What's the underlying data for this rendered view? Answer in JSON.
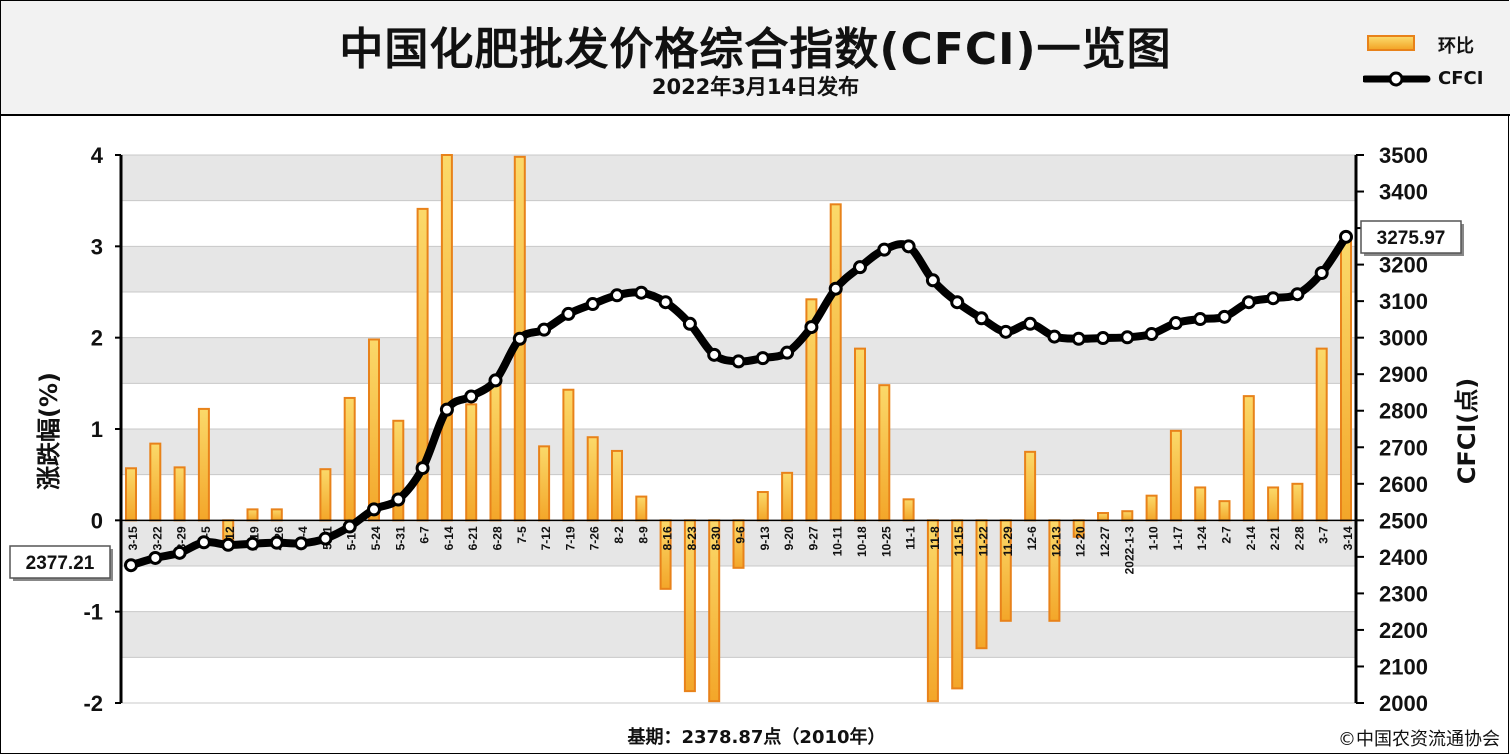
{
  "header": {
    "title": "中国化肥批发价格综合指数(CFCI)一览图",
    "subtitle": "2022年3月14日发布"
  },
  "legend": {
    "bar_label": "环比",
    "line_label": "CFCI"
  },
  "footer": {
    "base_note": "基期：2378.87点（2010年）",
    "copyright": "©中国农资流通协会"
  },
  "colors": {
    "bar_edge": "#e8821a",
    "bar_fill_top": "#fbd96a",
    "bar_fill_bottom": "#f3a629",
    "line": "#000000",
    "plot_band": "#e6e6e6"
  },
  "chart_data": {
    "type": "bar+line",
    "left_axis": {
      "label": "涨跌幅(%)",
      "ylim": [
        -2,
        4
      ],
      "ticks": [
        "-2",
        "-1",
        "0",
        "1",
        "2",
        "3",
        "4"
      ]
    },
    "right_axis": {
      "label": "CFCI(点)",
      "ylim": [
        2000,
        3500
      ],
      "ticks": [
        "2000",
        "2100",
        "2200",
        "2300",
        "2400",
        "2500",
        "2600",
        "2700",
        "2800",
        "2900",
        "3000",
        "3100",
        "3200",
        "3300",
        "3400",
        "3500"
      ]
    },
    "categories": [
      "3-15",
      "3-22",
      "3-29",
      "4-5",
      "4-12",
      "4-19",
      "4-26",
      "5-4",
      "5-11",
      "5-17",
      "5-24",
      "5-31",
      "6-7",
      "6-14",
      "6-21",
      "6-28",
      "7-5",
      "7-12",
      "7-19",
      "7-26",
      "8-2",
      "8-9",
      "8-16",
      "8-23",
      "8-30",
      "9-6",
      "9-13",
      "9-20",
      "9-27",
      "10-11",
      "10-18",
      "10-25",
      "11-1",
      "11-8",
      "11-15",
      "11-22",
      "11-29",
      "12-6",
      "12-13",
      "12-20",
      "12-27",
      "2022-1-3",
      "1-10",
      "1-17",
      "1-24",
      "2-7",
      "2-14",
      "2-21",
      "2-28",
      "3-7",
      "3-14"
    ],
    "series": [
      {
        "name": "环比",
        "axis": "left",
        "values": [
          0.57,
          0.84,
          0.58,
          1.22,
          -0.3,
          0.12,
          0.12,
          0.0,
          0.56,
          1.34,
          1.98,
          1.09,
          3.41,
          4.0,
          1.27,
          1.52,
          3.98,
          0.81,
          1.43,
          0.91,
          0.76,
          0.26,
          -0.75,
          -1.87,
          -1.98,
          -0.52,
          0.31,
          0.52,
          2.42,
          3.46,
          1.88,
          1.48,
          0.23,
          -1.98,
          -1.84,
          -1.4,
          -1.1,
          0.75,
          -1.1,
          -0.18,
          0.08,
          0.1,
          0.27,
          0.98,
          0.36,
          0.21,
          1.36,
          0.36,
          0.4,
          1.88,
          3.08
        ]
      },
      {
        "name": "CFCI",
        "axis": "right",
        "values": [
          2377.21,
          2397,
          2411,
          2440,
          2433,
          2436,
          2439,
          2437,
          2450,
          2483,
          2530,
          2557,
          2643,
          2803,
          2839,
          2883,
          2997,
          3022,
          3065,
          3092,
          3116,
          3123,
          3097,
          3038,
          2953,
          2935,
          2944,
          2959,
          3029,
          3134,
          3193,
          3241,
          3250,
          3157,
          3097,
          3053,
          3016,
          3038,
          3003,
          2997,
          2999,
          3001,
          3010,
          3040,
          3051,
          3057,
          3097,
          3108,
          3119,
          3177,
          3275.97
        ]
      }
    ],
    "callouts": [
      "2377.21",
      "3275.97"
    ]
  }
}
